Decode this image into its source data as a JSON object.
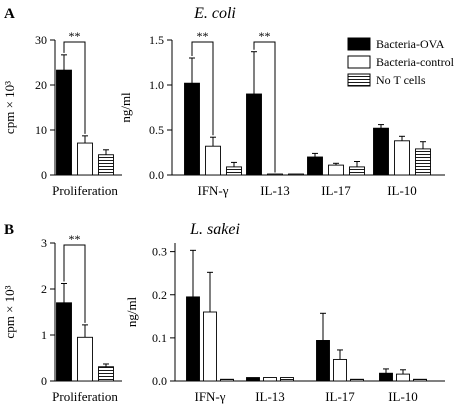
{
  "panels": [
    {
      "letter": "A",
      "title": "E. coli"
    },
    {
      "letter": "B",
      "title": "L. sakei"
    }
  ],
  "legend": {
    "placement": "top-right",
    "entries": [
      {
        "label": "Bacteria-OVA",
        "style": "black"
      },
      {
        "label": "Bacteria-control",
        "style": "white"
      },
      {
        "label": "No T cells",
        "style": "striped"
      }
    ]
  },
  "colors": {
    "black_fill": "#000000",
    "white_fill": "#ffffff",
    "stripe": "#000000"
  },
  "chart_data": [
    {
      "type": "bar",
      "panel": "A",
      "ylabel": "cpm × 10³",
      "ylim": [
        0,
        30
      ],
      "yticks": [
        "0",
        "10",
        "20",
        "30"
      ],
      "categories": [
        "Proliferation"
      ],
      "series": [
        {
          "name": "Bacteria-OVA",
          "values": [
            23.3
          ],
          "errors": [
            3.4
          ]
        },
        {
          "name": "Bacteria-control",
          "values": [
            7.1
          ],
          "errors": [
            1.6
          ]
        },
        {
          "name": "No T cells",
          "values": [
            4.5
          ],
          "errors": [
            1.1
          ]
        }
      ],
      "significance": [
        "**"
      ]
    },
    {
      "type": "bar",
      "panel": "A",
      "ylabel": "ng/ml",
      "ylim": [
        0,
        1.5
      ],
      "yticks": [
        "0.0",
        "0.5",
        "1.0",
        "1.5"
      ],
      "categories": [
        "IFN-γ",
        "IL-13",
        "IL-17",
        "IL-10"
      ],
      "series": [
        {
          "name": "Bacteria-OVA",
          "values": [
            1.02,
            0.9,
            0.2,
            0.52
          ],
          "errors": [
            0.28,
            0.47,
            0.04,
            0.04
          ]
        },
        {
          "name": "Bacteria-control",
          "values": [
            0.32,
            0.005,
            0.11,
            0.38
          ],
          "errors": [
            0.1,
            0.0,
            0.02,
            0.05
          ]
        },
        {
          "name": "No T cells",
          "values": [
            0.09,
            0.005,
            0.09,
            0.29
          ],
          "errors": [
            0.05,
            0.0,
            0.06,
            0.08
          ]
        }
      ],
      "significance": [
        "**",
        "**"
      ]
    },
    {
      "type": "bar",
      "panel": "B",
      "ylabel": "cpm × 10³",
      "ylim": [
        0,
        3
      ],
      "yticks": [
        "0",
        "1",
        "2",
        "3"
      ],
      "categories": [
        "Proliferation"
      ],
      "series": [
        {
          "name": "Bacteria-OVA",
          "values": [
            1.7
          ],
          "errors": [
            0.42
          ]
        },
        {
          "name": "Bacteria-control",
          "values": [
            0.95
          ],
          "errors": [
            0.27
          ]
        },
        {
          "name": "No T cells",
          "values": [
            0.31
          ],
          "errors": [
            0.06
          ]
        }
      ],
      "significance": [
        "**"
      ]
    },
    {
      "type": "bar",
      "panel": "B",
      "ylabel": "ng/ml",
      "ylim": [
        0,
        0.32
      ],
      "yticks": [
        "0.0",
        "0.1",
        "0.2",
        "0.3"
      ],
      "categories": [
        "IFN-γ",
        "IL-13",
        "IL-17",
        "IL-10"
      ],
      "series": [
        {
          "name": "Bacteria-OVA",
          "values": [
            0.195,
            0.008,
            0.094,
            0.018
          ],
          "errors": [
            0.108,
            0.0,
            0.063,
            0.01
          ]
        },
        {
          "name": "Bacteria-control",
          "values": [
            0.16,
            0.008,
            0.05,
            0.016
          ],
          "errors": [
            0.092,
            0.0,
            0.022,
            0.01
          ]
        },
        {
          "name": "No T cells",
          "values": [
            0.004,
            0.008,
            0.004,
            0.004
          ],
          "errors": [
            0.0,
            0.0,
            0.0,
            0.0
          ]
        }
      ],
      "significance": []
    }
  ]
}
